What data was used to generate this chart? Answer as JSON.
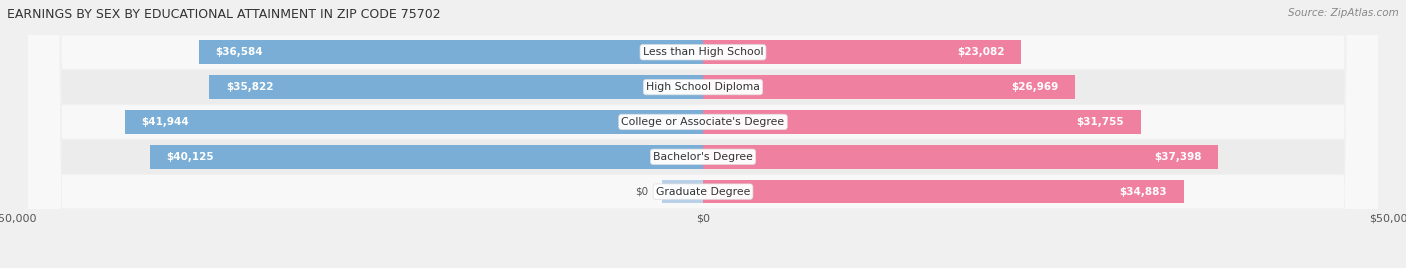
{
  "title": "EARNINGS BY SEX BY EDUCATIONAL ATTAINMENT IN ZIP CODE 75702",
  "source": "Source: ZipAtlas.com",
  "categories": [
    "Less than High School",
    "High School Diploma",
    "College or Associate's Degree",
    "Bachelor's Degree",
    "Graduate Degree"
  ],
  "male_values": [
    36584,
    35822,
    41944,
    40125,
    0
  ],
  "female_values": [
    23082,
    26969,
    31755,
    37398,
    34883
  ],
  "male_color": "#7aaed6",
  "female_color": "#f080a0",
  "male_stub_color": "#b8d0e8",
  "xlim": 50000,
  "background_color": "#f0f0f0",
  "row_bg_light": "#f8f8f8",
  "row_bg_dark": "#ececec"
}
